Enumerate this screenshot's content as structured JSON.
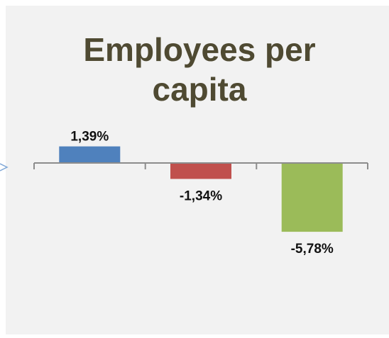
{
  "chart_data": {
    "type": "bar",
    "title": "Employees per capita",
    "title_lines": [
      "Employees per",
      "capita"
    ],
    "categories": [
      "",
      "",
      ""
    ],
    "values": [
      1.39,
      -1.34,
      -5.78
    ],
    "labels": [
      "1,39%",
      "-1,34%",
      "-5,78%"
    ],
    "colors": [
      "#4f81bd",
      "#c0504d",
      "#9bbb59"
    ],
    "xlabel": "",
    "ylabel": "",
    "ylim": [
      -6,
      2
    ],
    "grid": false,
    "legend": "none"
  },
  "colors": {
    "plot_background": "#f2f2f2",
    "outer_background": "#ffffff",
    "axis": "#8c8c8c",
    "title": "#4f4a32",
    "marker": "#7fa7d6"
  }
}
